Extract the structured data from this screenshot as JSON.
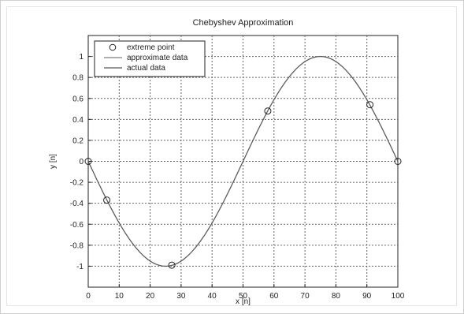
{
  "chart_data": {
    "type": "line",
    "title": "Chebyshev Approximation",
    "xlabel": "x [n]",
    "ylabel": "y [n]",
    "xlim": [
      0,
      100
    ],
    "ylim": [
      -1.2,
      1.2
    ],
    "grid": true,
    "legend_position": "top-left",
    "xticks": [
      0,
      10,
      20,
      30,
      40,
      50,
      60,
      70,
      80,
      90,
      100
    ],
    "yticks": [
      -1,
      -0.8,
      -0.6,
      -0.4,
      -0.2,
      0,
      0.2,
      0.4,
      0.6,
      0.8,
      1
    ],
    "xtick_labels": [
      "0",
      "10",
      "20",
      "30",
      "40",
      "50",
      "60",
      "70",
      "80",
      "90",
      "100"
    ],
    "ytick_labels": [
      "-1",
      "-0.8",
      "-0.6",
      "-0.4",
      "-0.2",
      "0",
      "0.2",
      "0.4",
      "0.6",
      "0.8",
      "1"
    ],
    "series": [
      {
        "name": "extreme point",
        "kind": "scatter",
        "marker": "circle",
        "x": [
          0,
          6,
          27,
          58,
          91,
          100
        ],
        "y": [
          0,
          -0.37,
          -0.99,
          0.48,
          0.54,
          0
        ]
      },
      {
        "name": "approximate data",
        "kind": "line",
        "x": [
          0,
          5,
          10,
          15,
          20,
          25,
          30,
          35,
          40,
          45,
          50,
          55,
          60,
          65,
          70,
          75,
          80,
          85,
          90,
          95,
          100
        ],
        "y": [
          0,
          -0.31,
          -0.59,
          -0.81,
          -0.95,
          -1.0,
          -0.95,
          -0.81,
          -0.59,
          -0.31,
          0,
          0.31,
          0.59,
          0.81,
          0.95,
          1.0,
          0.95,
          0.81,
          0.59,
          0.31,
          0
        ]
      },
      {
        "name": "actual data",
        "kind": "line",
        "x": [
          0,
          5,
          10,
          15,
          20,
          25,
          30,
          35,
          40,
          45,
          50,
          55,
          60,
          65,
          70,
          75,
          80,
          85,
          90,
          95,
          100
        ],
        "y": [
          0,
          -0.31,
          -0.59,
          -0.81,
          -0.95,
          -1.0,
          -0.95,
          -0.81,
          -0.59,
          -0.31,
          0,
          0.31,
          0.59,
          0.81,
          0.95,
          1.0,
          0.95,
          0.81,
          0.59,
          0.31,
          0
        ]
      }
    ],
    "colors": {
      "axis": "#222222",
      "grid": "#666666",
      "curve_approx": "#7f7f7f",
      "curve_actual": "#555555",
      "marker": "#222222",
      "background": "#ffffff"
    }
  }
}
